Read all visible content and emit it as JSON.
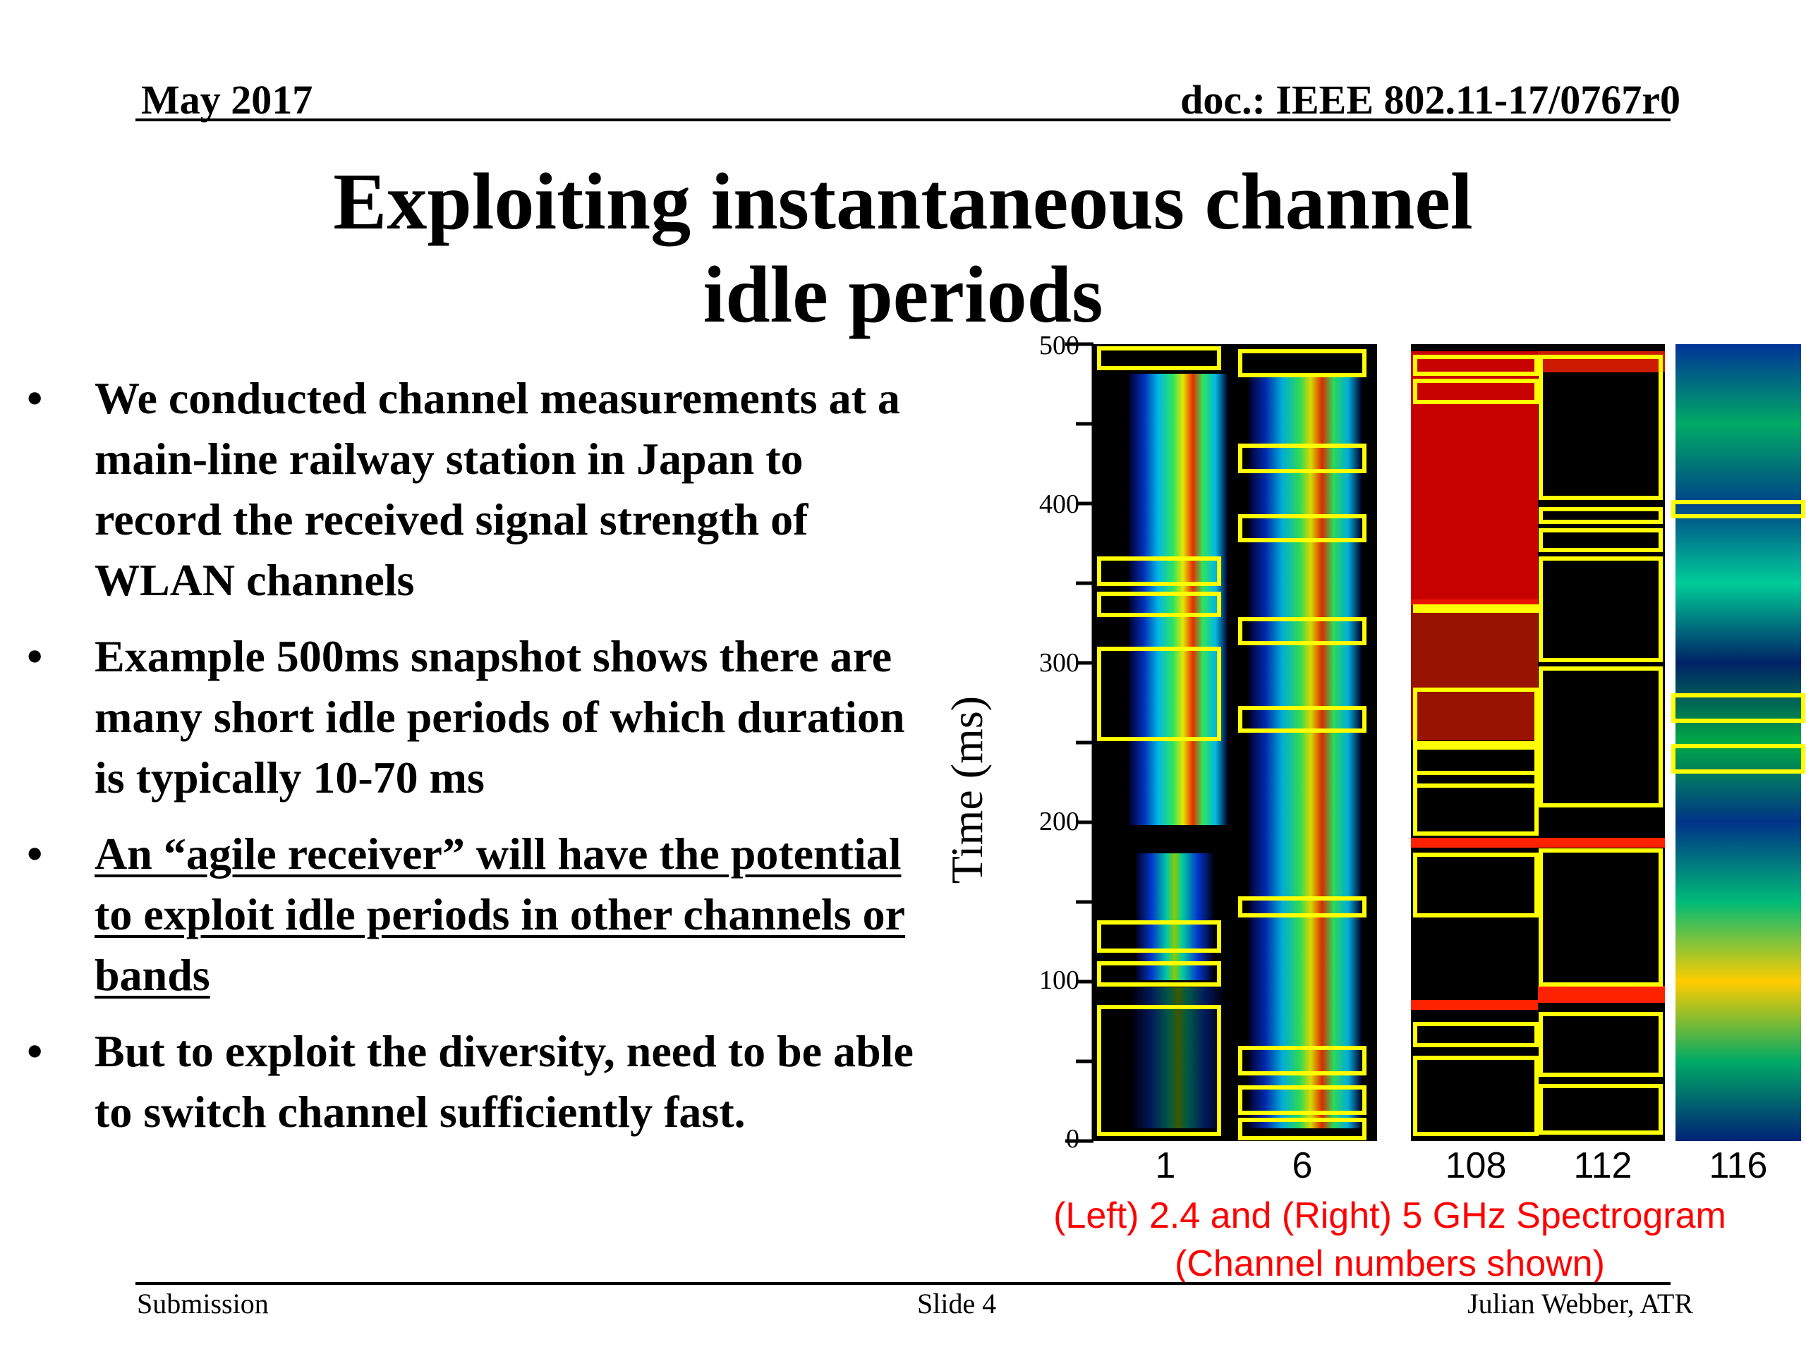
{
  "header": {
    "date": "May 2017",
    "doc": "doc.: IEEE 802.11-17/0767r0"
  },
  "title_line1": "Exploiting instantaneous channel",
  "title_line2": "idle periods",
  "bullets": [
    {
      "text": "We conducted channel measurements at a main-line railway station in Japan to record the received signal strength of WLAN channels",
      "underlined": false
    },
    {
      "text": "Example 500ms snapshot shows there are many short idle periods of which duration is typically 10-70 ms",
      "underlined": false
    },
    {
      "text": "An “agile receiver” will have the potential to exploit idle periods in other channels or bands",
      "underlined": true
    },
    {
      "text": "But to exploit the diversity, need to be able to switch channel sufficiently fast.",
      "underlined": false
    }
  ],
  "bullet_symbol": "•",
  "figure": {
    "ylabel": "Time (ms)",
    "y_ticks": [
      "500",
      "400",
      "300",
      "200",
      "100",
      "0"
    ],
    "channels": [
      "1",
      "6",
      "108",
      "112",
      "116"
    ],
    "caption_line1": "(Left) 2.4 and (Right) 5 GHz Spectrogram",
    "caption_line2": "(Channel numbers shown)",
    "colors": {
      "highlight": "#ffff00",
      "caption": "#ff0000",
      "background": "#000000"
    }
  },
  "footer": {
    "left": "Submission",
    "center": "Slide 4",
    "right": "Julian Webber, ATR"
  }
}
